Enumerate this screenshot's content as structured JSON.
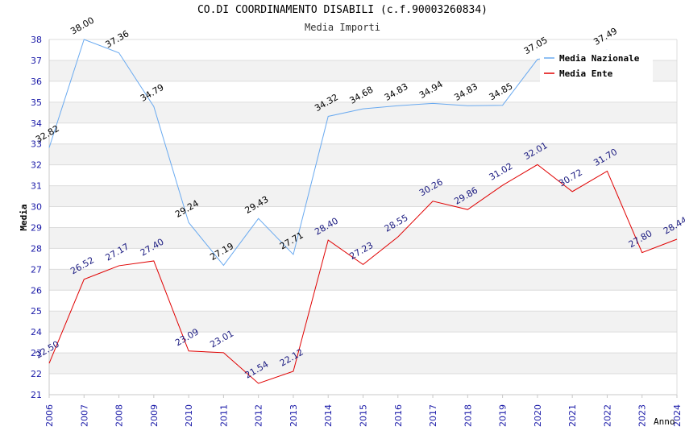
{
  "chart_data": {
    "type": "line",
    "title": "CO.DI COORDINAMENTO DISABILI (c.f.90003260834)",
    "subtitle": "Media Importi",
    "xlabel": "Anno",
    "ylabel": "Media",
    "ylim": [
      21,
      38
    ],
    "yticks": [
      "21",
      "22",
      "23",
      "24",
      "25",
      "26",
      "27",
      "28",
      "29",
      "30",
      "31",
      "32",
      "33",
      "34",
      "35",
      "36",
      "37",
      "38"
    ],
    "categories": [
      "2006",
      "2007",
      "2008",
      "2009",
      "2010",
      "2011",
      "2012",
      "2013",
      "2014",
      "2015",
      "2016",
      "2017",
      "2018",
      "2019",
      "2020",
      "2021",
      "2022",
      "2023",
      "2024"
    ],
    "legend_position": "top-right",
    "grid": "horizontal alternating bands",
    "series": [
      {
        "name": "Media Nazionale",
        "color": "#6aaaf0",
        "label_color": "#000000",
        "values": [
          32.82,
          38.0,
          37.36,
          34.79,
          29.24,
          27.19,
          29.43,
          27.71,
          34.32,
          34.68,
          34.83,
          34.94,
          34.83,
          34.85,
          37.05,
          null,
          37.49,
          null,
          null
        ],
        "labels": [
          "32.82",
          "38.00",
          "37.36",
          "34.79",
          "29.24",
          "27.19",
          "29.43",
          "27.71",
          "34.32",
          "34.68",
          "34.83",
          "34.94",
          "34.83",
          "34.85",
          "37.05",
          null,
          "37.49",
          null,
          null
        ]
      },
      {
        "name": "Media Ente",
        "color": "#e00000",
        "label_color": "#1a1a80",
        "values": [
          22.5,
          26.52,
          27.17,
          27.4,
          23.09,
          23.01,
          21.54,
          22.12,
          28.4,
          27.23,
          28.55,
          30.26,
          29.86,
          31.02,
          32.01,
          30.72,
          31.7,
          27.8,
          28.44
        ],
        "labels": [
          "22.50",
          "26.52",
          "27.17",
          "27.40",
          "23.09",
          "23.01",
          "21.54",
          "22.12",
          "28.40",
          "27.23",
          "28.55",
          "30.26",
          "29.86",
          "31.02",
          "32.01",
          "30.72",
          "31.70",
          "27.80",
          "28.44"
        ]
      }
    ]
  }
}
